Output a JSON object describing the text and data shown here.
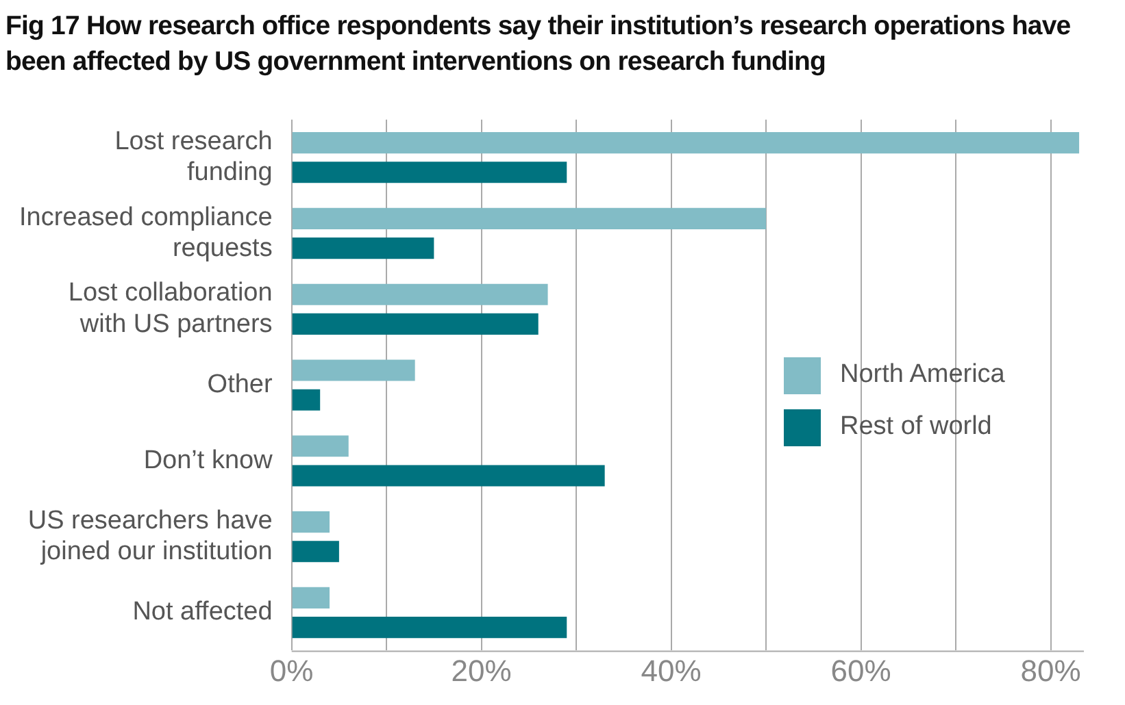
{
  "chart_data": {
    "type": "bar",
    "orientation": "horizontal",
    "title": "Fig 17 How research office respondents say their institution’s research operations have been affected by US government interventions on research funding",
    "categories": [
      "Lost research funding",
      "Increased compliance requests",
      "Lost collaboration with US partners",
      "Other",
      "Don’t know",
      "US researchers have joined our institution",
      "Not affected"
    ],
    "series": [
      {
        "name": "North America",
        "color": "#82bcc6",
        "values": [
          83,
          50,
          27,
          13,
          6,
          4,
          4
        ]
      },
      {
        "name": "Rest of world",
        "color": "#00737f",
        "values": [
          29,
          15,
          26,
          3,
          33,
          5,
          29
        ]
      }
    ],
    "xlim": [
      0,
      83.5
    ],
    "xticks": [
      {
        "value": 0,
        "label": "0%"
      },
      {
        "value": 10,
        "label": null
      },
      {
        "value": 20,
        "label": "20%"
      },
      {
        "value": 30,
        "label": null
      },
      {
        "value": 40,
        "label": "40%"
      },
      {
        "value": 50,
        "label": null
      },
      {
        "value": 60,
        "label": "60%"
      },
      {
        "value": 70,
        "label": null
      },
      {
        "value": 80,
        "label": "80%"
      }
    ],
    "grid": "x",
    "legend": "right"
  }
}
